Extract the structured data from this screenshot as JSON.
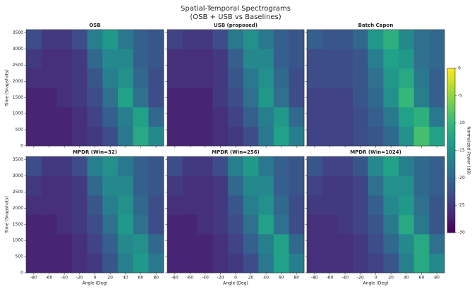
{
  "chart_data": {
    "type": "heatmap",
    "title": "Spatial-Temporal Spectrograms",
    "subtitle": "(OSB + USB vs Baselines)",
    "xlabel": "Angle (Deg)",
    "ylabel": "Time (Snapshots)",
    "xlim": [
      -90,
      90
    ],
    "ylim": [
      0,
      3600
    ],
    "xticks": [
      -80,
      -60,
      -40,
      -20,
      0,
      20,
      40,
      60,
      80
    ],
    "yticks": [
      0,
      500,
      1000,
      1500,
      2000,
      2500,
      3000,
      3500
    ],
    "x_bins": [
      -90,
      -70,
      -50,
      -30,
      -10,
      10,
      30,
      50,
      70,
      90
    ],
    "y_bins": [
      0,
      600,
      1200,
      1800,
      2400,
      3000,
      3600
    ],
    "colormap": "viridis",
    "colorbar": {
      "label": "Normalized Power (dB)",
      "lim": [
        -30,
        0
      ],
      "ticks": [
        0,
        -5,
        -10,
        -15,
        -20,
        -25,
        -30
      ]
    },
    "panels": [
      {
        "title": "OSB",
        "z": [
          [
            -27,
            -27,
            -27,
            -26,
            -25,
            -23,
            -18,
            -12,
            -16
          ],
          [
            -27,
            -27,
            -27,
            -26,
            -24,
            -21,
            -17,
            -13,
            -20
          ],
          [
            -27,
            -27,
            -26,
            -25,
            -23,
            -19,
            -13,
            -19,
            -23
          ],
          [
            -26,
            -26,
            -26,
            -25,
            -22,
            -17,
            -15,
            -20,
            -23
          ],
          [
            -25,
            -26,
            -26,
            -25,
            -20,
            -16,
            -16,
            -21,
            -22
          ],
          [
            -23,
            -25,
            -25,
            -23,
            -17,
            -14,
            -18,
            -21,
            -22
          ]
        ]
      },
      {
        "title": "USB (proposed)",
        "z": [
          [
            -27,
            -27,
            -27,
            -26,
            -25,
            -23,
            -18,
            -13,
            -17
          ],
          [
            -27,
            -27,
            -27,
            -26,
            -24,
            -21,
            -17,
            -14,
            -20
          ],
          [
            -27,
            -27,
            -27,
            -25,
            -23,
            -19,
            -14,
            -19,
            -23
          ],
          [
            -26,
            -26,
            -26,
            -25,
            -22,
            -18,
            -15,
            -20,
            -23
          ],
          [
            -26,
            -26,
            -26,
            -25,
            -21,
            -16,
            -16,
            -21,
            -22
          ],
          [
            -24,
            -25,
            -25,
            -23,
            -18,
            -15,
            -18,
            -21,
            -22
          ]
        ]
      },
      {
        "title": "Batch Capon",
        "z": [
          [
            -24,
            -24,
            -24,
            -23,
            -22,
            -20,
            -15,
            -9,
            -13
          ],
          [
            -24,
            -24,
            -24,
            -23,
            -21,
            -18,
            -13,
            -11,
            -18
          ],
          [
            -24,
            -24,
            -24,
            -22,
            -20,
            -15,
            -10,
            -17,
            -21
          ],
          [
            -23,
            -23,
            -23,
            -22,
            -19,
            -14,
            -12,
            -18,
            -21
          ],
          [
            -23,
            -23,
            -23,
            -22,
            -17,
            -13,
            -14,
            -19,
            -20
          ],
          [
            -21,
            -22,
            -22,
            -20,
            -14,
            -11,
            -16,
            -19,
            -20
          ]
        ]
      },
      {
        "title": "MPDR (Win=32)",
        "z": [
          [
            -27,
            -27,
            -27,
            -26,
            -25,
            -22,
            -17,
            -14,
            -18
          ],
          [
            -27,
            -27,
            -27,
            -26,
            -24,
            -21,
            -16,
            -15,
            -20
          ],
          [
            -27,
            -27,
            -26,
            -25,
            -23,
            -19,
            -14,
            -19,
            -23
          ],
          [
            -26,
            -26,
            -26,
            -25,
            -22,
            -17,
            -15,
            -20,
            -23
          ],
          [
            -25,
            -26,
            -26,
            -25,
            -20,
            -16,
            -16,
            -21,
            -22
          ],
          [
            -23,
            -25,
            -25,
            -23,
            -17,
            -15,
            -18,
            -21,
            -22
          ]
        ]
      },
      {
        "title": "MPDR (Win=256)",
        "z": [
          [
            -27,
            -27,
            -27,
            -26,
            -25,
            -23,
            -18,
            -13,
            -17
          ],
          [
            -27,
            -27,
            -27,
            -26,
            -24,
            -21,
            -17,
            -13,
            -20
          ],
          [
            -27,
            -27,
            -26,
            -25,
            -23,
            -19,
            -13,
            -19,
            -23
          ],
          [
            -26,
            -26,
            -26,
            -25,
            -22,
            -17,
            -15,
            -20,
            -23
          ],
          [
            -25,
            -26,
            -26,
            -25,
            -20,
            -16,
            -16,
            -21,
            -22
          ],
          [
            -23,
            -25,
            -25,
            -23,
            -17,
            -14,
            -18,
            -21,
            -22
          ]
        ]
      },
      {
        "title": "MPDR (Win=1024)",
        "z": [
          [
            -26,
            -26,
            -26,
            -25,
            -24,
            -22,
            -17,
            -12,
            -16
          ],
          [
            -26,
            -26,
            -26,
            -25,
            -23,
            -20,
            -16,
            -12,
            -19
          ],
          [
            -26,
            -26,
            -25,
            -24,
            -22,
            -18,
            -12,
            -18,
            -22
          ],
          [
            -25,
            -25,
            -25,
            -24,
            -21,
            -16,
            -14,
            -19,
            -22
          ],
          [
            -24,
            -25,
            -25,
            -24,
            -19,
            -15,
            -15,
            -20,
            -21
          ],
          [
            -22,
            -24,
            -24,
            -22,
            -16,
            -13,
            -17,
            -20,
            -21
          ]
        ]
      }
    ]
  }
}
